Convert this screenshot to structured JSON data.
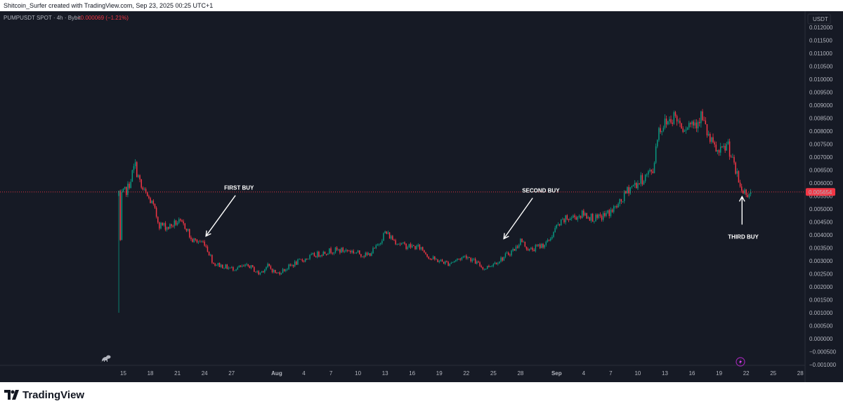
{
  "attribution": "Shitcoin_Surfer created with TradingView.com, Sep 23, 2025 00:25 UTC+1",
  "legend": {
    "symbol_text": "PUMPUSDT SPOT · 4h · Bybit",
    "change_text": "−0.000069 (−1.21%)",
    "change_color": "#f23645"
  },
  "currency_label": "USDT",
  "price_label": "0.005654",
  "colors": {
    "up": "#089981",
    "down": "#f23645",
    "background": "#161a25",
    "grid": "#1f2330",
    "text": "#b2b5be",
    "price_line": "#f23645"
  },
  "footer": {
    "brand": "TradingView"
  },
  "icons": [
    "dino-icon",
    "lightning-icon",
    "tradingview-logo-icon"
  ],
  "chart_data": {
    "type": "candlestick",
    "timeframe": "4h",
    "symbol": "PUMPUSDT",
    "exchange": "Bybit",
    "ylim": [
      -0.001,
      0.012
    ],
    "y_ticks": [
      "0.012000",
      "0.011500",
      "0.011000",
      "0.010500",
      "0.010000",
      "0.009500",
      "0.009000",
      "0.008500",
      "0.008000",
      "0.007500",
      "0.007000",
      "0.006500",
      "0.006000",
      "0.005500",
      "0.005000",
      "0.004500",
      "0.004000",
      "0.003500",
      "0.003000",
      "0.002500",
      "0.002000",
      "0.001500",
      "0.001000",
      "0.000500",
      "0.000000",
      "−0.000500",
      "−0.001000"
    ],
    "x_ticks": [
      "15",
      "18",
      "21",
      "24",
      "27",
      "Aug",
      "4",
      "7",
      "10",
      "13",
      "16",
      "19",
      "22",
      "25",
      "28",
      "Sep",
      "4",
      "7",
      "10",
      "13",
      "16",
      "19",
      "22",
      "25",
      "28"
    ],
    "current_price": 0.005654,
    "grid": false,
    "annotations": [
      {
        "text": "FIRST BUY",
        "day": 24.0,
        "price": 0.0039
      },
      {
        "text": "SECOND BUY",
        "day": 57.0,
        "price": 0.0038
      },
      {
        "text": "THIRD BUY",
        "day": 83.0,
        "price": 0.0051
      }
    ],
    "path": [
      [
        14.5,
        0.0014
      ],
      [
        14.8,
        0.0055
      ],
      [
        15.5,
        0.0058
      ],
      [
        16.3,
        0.0067
      ],
      [
        17.0,
        0.0058
      ],
      [
        18.2,
        0.0052
      ],
      [
        19.0,
        0.0044
      ],
      [
        20.0,
        0.0043
      ],
      [
        21.0,
        0.0045
      ],
      [
        22.0,
        0.0043
      ],
      [
        22.5,
        0.0038
      ],
      [
        24.0,
        0.0037
      ],
      [
        25.0,
        0.0029
      ],
      [
        27.0,
        0.0027
      ],
      [
        29.0,
        0.0028
      ],
      [
        30.0,
        0.0025
      ],
      [
        31.0,
        0.0028
      ],
      [
        32.0,
        0.0025
      ],
      [
        34.0,
        0.0029
      ],
      [
        36.0,
        0.0032
      ],
      [
        38.0,
        0.0034
      ],
      [
        40.0,
        0.0034
      ],
      [
        42.0,
        0.0032
      ],
      [
        43.0,
        0.0035
      ],
      [
        44.0,
        0.0041
      ],
      [
        45.0,
        0.0038
      ],
      [
        46.0,
        0.0036
      ],
      [
        48.0,
        0.0035
      ],
      [
        49.0,
        0.0031
      ],
      [
        51.0,
        0.0029
      ],
      [
        53.0,
        0.0032
      ],
      [
        55.0,
        0.0027
      ],
      [
        57.0,
        0.0031
      ],
      [
        58.5,
        0.0035
      ],
      [
        59.0,
        0.0038
      ],
      [
        60.0,
        0.0034
      ],
      [
        62.0,
        0.0037
      ],
      [
        63.0,
        0.0043
      ],
      [
        64.0,
        0.0046
      ],
      [
        66.0,
        0.0048
      ],
      [
        67.5,
        0.0046
      ],
      [
        69.0,
        0.0049
      ],
      [
        70.0,
        0.0052
      ],
      [
        71.0,
        0.0058
      ],
      [
        72.0,
        0.006
      ],
      [
        73.0,
        0.0063
      ],
      [
        73.7,
        0.0065
      ],
      [
        74.2,
        0.008
      ],
      [
        75.0,
        0.0083
      ],
      [
        76.0,
        0.0086
      ],
      [
        77.0,
        0.0082
      ],
      [
        78.5,
        0.0084
      ],
      [
        79.0,
        0.0086
      ],
      [
        80.0,
        0.0076
      ],
      [
        81.0,
        0.0071
      ],
      [
        82.0,
        0.0075
      ],
      [
        82.5,
        0.0068
      ],
      [
        83.5,
        0.0057
      ],
      [
        84.5,
        0.0056
      ]
    ]
  }
}
